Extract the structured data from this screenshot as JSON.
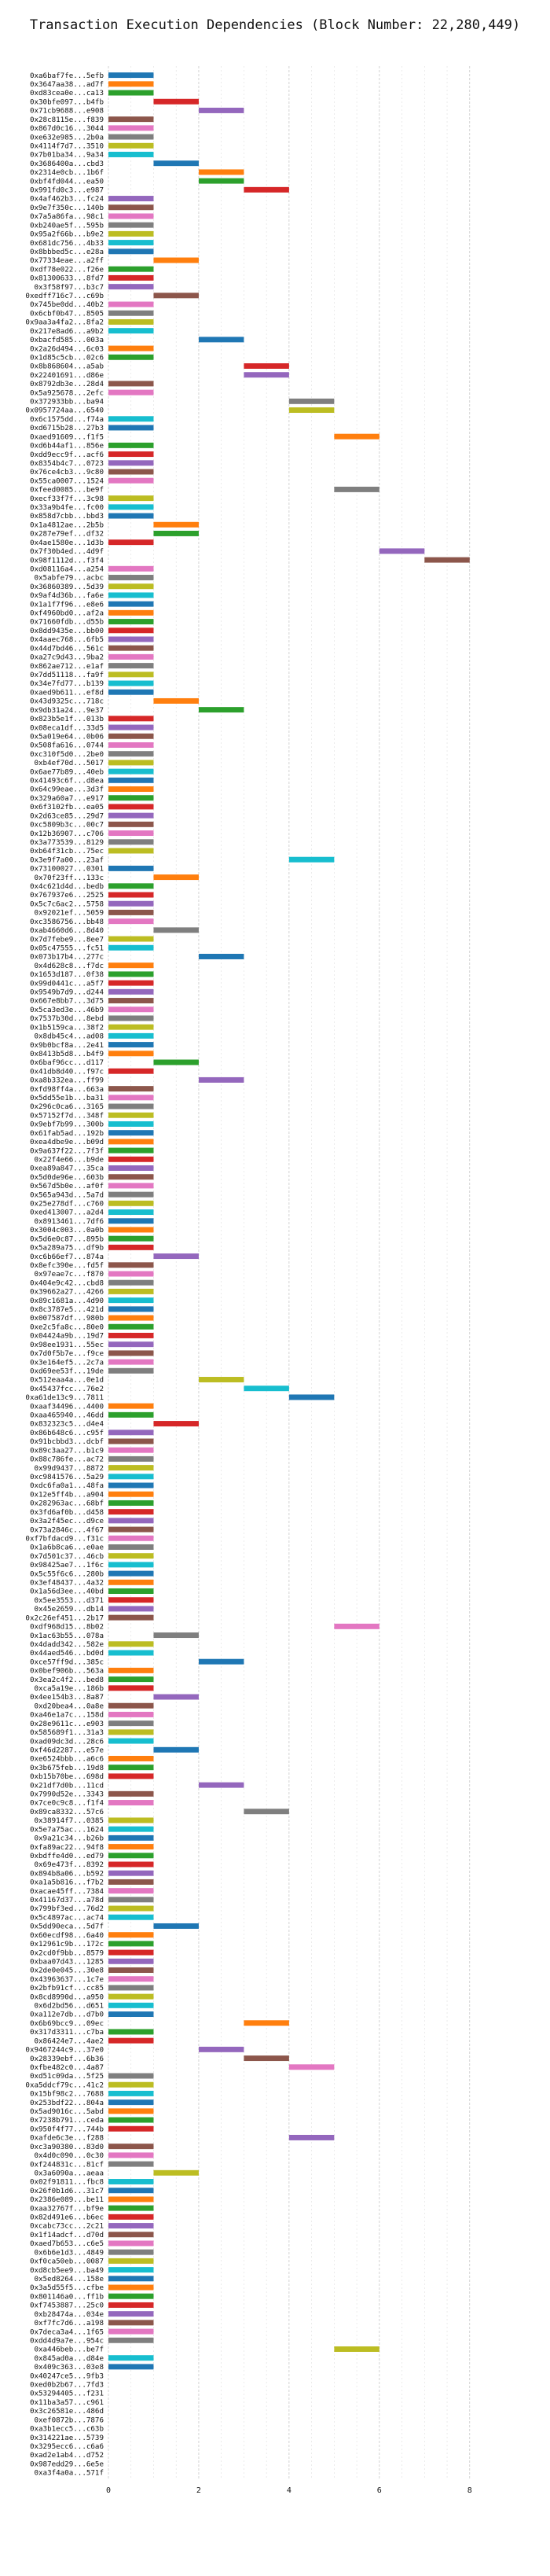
{
  "chart_data": {
    "type": "bar",
    "orientation": "horizontal",
    "title": "Transaction Execution Dependencies (Block Number: 22,280,449)",
    "xlabel": "",
    "ylabel": "",
    "xlim": [
      0,
      8.3
    ],
    "xticks": [
      0,
      2,
      4,
      6,
      8
    ],
    "x_minor_gridlines": true,
    "grid": true,
    "categories": [
      "0xa6baf7fe...5efb",
      "0x3647aa38...ad7f",
      "0xd83cea0e...ca13",
      "0x30bfe097...b4fb",
      "0x71cb9688...e908",
      "0x28c8115e...f839",
      "0x867d0c16...3044",
      "0xe632e985...2b0a",
      "0x4114f7d7...3510",
      "0x7b01ba34...9a34",
      "0x3686400a...cbd3",
      "0x2314e0cb...1b6f",
      "0xbf4fd044...ea50",
      "0x991fd0c3...e987",
      "0x4af462b3...fc24",
      "0x9e7f350c...140b",
      "0x7a5a86fa...98c1",
      "0xb240ae5f...595b",
      "0x95a2f66b...b9e2",
      "0x681dc756...4b33",
      "0x8bbbed5c...e28a",
      "0x77334eae...a2ff",
      "0xdf78e022...f26e",
      "0x81300633...8fd7",
      "0x3f58f97...b3c7",
      "0xedff716c7...c69b",
      "0x745be0dd...40b2",
      "0x6cbf0b47...8505",
      "0x9aa3a4fa2...8fa2",
      "0x217e8ad6...a9b2",
      "0xbacfd585...003a",
      "0x2a26d494...6c03",
      "0x1d85c5cb...02c6",
      "0x8b868604...a5ab",
      "0x22401691...d86e",
      "0x8792db3e...28d4",
      "0x5a925678...2efc",
      "0x372933bb...ba94",
      "0x0957724aa...6540",
      "0x6c1575dd...f74a",
      "0xd6715b28...27b3",
      "0xaed91609...f1f5",
      "0xd6b44af1...856e",
      "0xdd9ecc9f...acf6",
      "0x8354b4c7...0723",
      "0x76ce4cb3...9c80",
      "0x55ca0007...1524",
      "0xfeed0085...be9f",
      "0xecf33f7f...3c98",
      "0x33a9b4fe...fc00",
      "0x858d7cbb...bbd3",
      "0x1a4812ae...2b5b",
      "0x287e79ef...df32",
      "0x4ae1580e...1d3b",
      "0x7f30b4ed...4d9f",
      "0x98f1112d...f3f4",
      "0xd08116a4...a254",
      "0x5abfe79...acbc",
      "0x36860389...5d39",
      "0x9af4d36b...fa6e",
      "0x1a1f7f96...e8e6",
      "0xf4960bd0...af2a",
      "0x71660fdb...d55b",
      "0x8dd9435e...bb00",
      "0x4aaec768...6fb5",
      "0x44d7bd46...561c",
      "0xa27c9d43...9ba2",
      "0x862ae712...e1af",
      "0x7dd51118...fa9f",
      "0x34e7fd77...b139",
      "0xaed9b611...ef8d",
      "0x43d9325c...718c",
      "0x9db31a24...9e37",
      "0x823b5e1f...013b",
      "0x08eca1df...33d5",
      "0x5a019e64...0b06",
      "0x508fa616...0744",
      "0xc310f5d0...2be0",
      "0xb4ef70d...5017",
      "0x6ae77b89...40eb",
      "0x41493c6f...d8ea",
      "0x64c99eae...3d3f",
      "0x329a60a7...e917",
      "0x6f3102fb...ea05",
      "0x2d63ce85...29d7",
      "0xc5809b3c...00c7",
      "0x12b36907...c706",
      "0x3a773539...8129",
      "0xb64f31cb...75ec",
      "0x3e9f7a00...23af",
      "0x73100027...0301",
      "0x70f23ff...133c",
      "0x4c621d4d...bedb",
      "0x767937e6...2525",
      "0x5c7c6ac2...5758",
      "0x92021ef...5059",
      "0xc3586756...bb48",
      "0xab4660d6...8d40",
      "0x7d7febe9...8ee7",
      "0x05c47555...fc51",
      "0x073b17b4...277c",
      "0x4d628c8...f7dc",
      "0x1653d187...0f38",
      "0x99d0441c...a5f7",
      "0x9549b7d9...d244",
      "0x667e8bb7...3d75",
      "0x5ca3ed3e...46b9",
      "0x7537b30d...8ebd",
      "0x1b5159ca...38f2",
      "0x8db45c4...ad08",
      "0x9b0bcf8a...2e41",
      "0x8413b5d8...b4f9",
      "0x6baf96cc...d117",
      "0x41db8d40...f97c",
      "0xa8b332ea...ff99",
      "0xfd98ff4a...663a",
      "0x5dd55e1b...ba31",
      "0x296c0ca6...3165",
      "0x57152f7d...348f",
      "0x9ebf7b99...300b",
      "0x61fab5ad...192b",
      "0xea4dbe9e...b09d",
      "0x9a637f22...7f3f",
      "0x22f4e66...b9de",
      "0xea89a847...35ca",
      "0x5d0de96e...603b",
      "0x567d5b0e...af0f",
      "0x565a943d...5a7d",
      "0x25e278df...c760",
      "0xed413007...a2d4",
      "0x8913461...7df6",
      "0x3004c003...0a0b",
      "0x5d6e0c87...895b",
      "0x5a289a75...df9b",
      "0xc6b66ef7...874a",
      "0x8efc390e...fd5f",
      "0x97eae7c...f870",
      "0x404e9c42...cbd8",
      "0x39662a27...4266",
      "0x89c1681a...4d90",
      "0x8c3787e5...421d",
      "0x007587df...980b",
      "0xe2c5fa8c...80e0",
      "0x04424a9b...19d7",
      "0x98ee1931...55ec",
      "0x7d0f5b7e...f9ce",
      "0x3e164ef5...2c7a",
      "0xd69ee53f...19de",
      "0x512eaa4a...0e1d",
      "0x45437fcc...76e2",
      "0xa61de13c9...7811",
      "0xaaf34496...4400",
      "0xaa465940...46dd",
      "0x832323c5...d4e4",
      "0x86b648c6...c95f",
      "0x91bcbbd3...dcbf",
      "0x89c3aa27...b1c9",
      "0x88c786fe...ac72",
      "0x99d9437...8872",
      "0xc9841576...5a29",
      "0xdc6fa0a1...48fa",
      "0x12e5ff4b...a904",
      "0x282963ac...68bf",
      "0x3fd6af0b...d458",
      "0x3a2f45ec...d9ce",
      "0x73a2846c...4f67",
      "0xf7bfdacd9...f31c",
      "0x1a6b8ca6...e0ae",
      "0x7d501c37...46cb",
      "0x98425ae7...1f6c",
      "0x5c55f6c6...280b",
      "0x3ef48437...4a32",
      "0x1a56d3ee...40bd",
      "0x5ee3553...d371",
      "0x45e2659...db14",
      "0x2c26ef451...2b17",
      "0xdf968d15...8b02",
      "0x1ac63b55...078a",
      "0x4dadd342...582e",
      "0x44aed546...bd0d",
      "0xce57ff9d...385c",
      "0x0bef906b...563a",
      "0x3ea2c4f2...bed8",
      "0xca5a19e...186b",
      "0x4ee154b3...8a87",
      "0xd20bea4...0a8e",
      "0xa46e1a7c...158d",
      "0x28e9611c...e903",
      "0x585689f1...31a3",
      "0xad09dc3d...28c6",
      "0xf46d2287...e57e",
      "0xe6524bbb...a6c6",
      "0x3b675feb...19d8",
      "0xb15b70be...698d",
      "0x21df7d0b...11cd",
      "0x7990d52e...3343",
      "0x7ce0c9c8...f1f4",
      "0x89ca8332...57c6",
      "0x38914f7...0385",
      "0x5e7a75ac...1624",
      "0x9a21c34...b26b",
      "0xfa89ac22...94f8",
      "0xbdffe4d0...ed79",
      "0x69e473f...8392",
      "0x894b8a06...b592",
      "0xa1a5b816...f7b2",
      "0xacae45ff...7384",
      "0x41167d37...a78d",
      "0x799bf3ed...76d2",
      "0x5c4897ac...ac74",
      "0x5dd90eca...5d7f",
      "0x60ecdf98...6a40",
      "0x12961c9b...172c",
      "0x2cd0f9bb...8579",
      "0xbaa07d43...1285",
      "0x2de0e045...30e8",
      "0x43963637...1c7e",
      "0x2bfb91cf...cc85",
      "0x8cd8990d...a950",
      "0x6d2bd56...d651",
      "0xa112e7db...d7b0",
      "0x6b69bcc9...09ec",
      "0x317d3311...c7ba",
      "0x86424e7...4ae2",
      "0x9467244c9...37e0",
      "0x28339ebf...6b36",
      "0xfbe482c0...4a87",
      "0xd51c09da...5f25",
      "0xa5ddcf79c...41c2",
      "0x15bf98c2...7688",
      "0x253bdf22...804a",
      "0x5ad9016c...5abd",
      "0x7238b791...ceda",
      "0x950f4f77...744b",
      "0xafde6c3e...f288",
      "0xc3a90380...83d0",
      "0x4d0c090...0c30",
      "0xf244831c...81cf",
      "0x3a6090a...aeaa",
      "0x02f91811...fbc8",
      "0x26f0b1d6...31c7",
      "0x2386e089...be11",
      "0xaa32767f...bf9e",
      "0x82d491e6...b6ec",
      "0xcabc73cc...2c21",
      "0x1f14adcf...d70d",
      "0xaed7b653...c6e5",
      "0x6b6e1d3...4849",
      "0xf0ca50eb...0087",
      "0xd8cb5ee9...ba49",
      "0x5ed8264...158e",
      "0x3a5d55f5...cfbe",
      "0x801146a0...ff1b",
      "0xf7453887...25c0",
      "0xb28474a...034e",
      "0xf7fc7d6...a198",
      "0x7deca3a4...1f65",
      "0xdd4d9a7e...954c",
      "0xa446beb...be7f",
      "0x845ad0a...d84e",
      "0x409c363...03e8",
      "0x40247ce5...9fb3",
      "0xed0b2b67...7fd3",
      "0x53294405...f231",
      "0x11ba3a57...c961",
      "0x3c26581e...486d",
      "0xef0872b...7876",
      "0xa3b1ecc5...c63b",
      "0x314221ae...5739",
      "0x3295ecc6...c6a6",
      "0xad2e1ab4...d752",
      "0x987edd29...6e5e",
      "0xa3f4a0a...571f"
    ],
    "start_values": [
      0,
      0,
      0,
      1,
      2,
      0,
      0,
      0,
      0,
      0,
      1,
      2,
      2,
      3,
      0,
      0,
      0,
      0,
      0,
      0,
      0,
      1,
      0,
      0,
      0,
      1,
      0,
      0,
      0,
      0,
      2,
      0,
      0,
      3,
      3,
      0,
      0,
      4,
      4,
      0,
      0,
      5,
      0,
      0,
      0,
      0,
      0,
      5,
      0,
      0,
      0,
      1,
      1,
      0,
      6,
      7,
      0,
      0,
      0,
      0,
      0,
      0,
      0,
      0,
      0,
      0,
      0,
      0,
      0,
      0,
      0,
      1,
      2,
      0,
      0,
      0,
      0,
      0,
      0,
      0,
      0,
      0,
      0,
      0,
      0,
      0,
      0,
      0,
      0,
      4,
      0,
      1,
      0,
      0,
      0,
      0,
      0,
      1,
      0,
      0,
      2,
      0,
      0,
      0,
      0,
      0,
      0,
      0,
      0,
      0,
      0,
      0,
      1,
      0,
      2,
      0,
      0,
      0,
      0,
      0,
      0,
      0,
      0,
      0,
      0,
      0,
      0,
      0,
      0,
      0,
      0,
      0,
      0,
      0,
      1,
      0,
      0,
      0,
      0,
      0,
      0,
      0,
      0,
      0,
      0,
      0,
      0,
      0,
      2,
      3,
      4,
      0,
      0,
      1,
      0,
      0,
      0,
      0,
      0,
      0,
      0,
      0,
      0,
      0,
      0,
      0,
      0,
      0,
      0,
      0,
      0,
      0,
      0,
      0,
      0,
      0,
      5,
      1,
      0,
      0,
      2,
      0,
      0,
      0,
      1,
      0,
      0,
      0,
      0,
      0,
      1,
      0,
      0,
      0,
      2,
      0,
      0,
      3,
      0,
      0,
      0,
      0,
      0,
      0,
      0,
      0,
      0,
      0,
      0,
      0,
      1,
      0,
      0,
      0,
      0,
      0,
      0,
      0,
      0,
      0,
      0,
      3,
      0,
      0,
      2,
      3,
      4,
      0,
      0,
      0,
      0,
      0,
      0,
      0,
      4,
      0,
      0,
      0,
      1,
      0,
      0,
      0,
      0,
      0,
      0,
      0,
      0,
      0,
      0,
      0,
      0,
      0,
      0,
      0,
      0,
      0,
      0,
      0,
      5,
      0,
      0
    ],
    "end_values": [
      1,
      1,
      1,
      2,
      3,
      1,
      1,
      1,
      1,
      1,
      2,
      3,
      3,
      4,
      1,
      1,
      1,
      1,
      1,
      1,
      1,
      2,
      1,
      1,
      1,
      2,
      1,
      1,
      1,
      1,
      3,
      1,
      1,
      4,
      4,
      1,
      1,
      5,
      5,
      1,
      1,
      6,
      1,
      1,
      1,
      1,
      1,
      6,
      1,
      1,
      1,
      2,
      2,
      1,
      7,
      8,
      1,
      1,
      1,
      1,
      1,
      1,
      1,
      1,
      1,
      1,
      1,
      1,
      1,
      1,
      1,
      2,
      3,
      1,
      1,
      1,
      1,
      1,
      1,
      1,
      1,
      1,
      1,
      1,
      1,
      1,
      1,
      1,
      1,
      5,
      1,
      2,
      1,
      1,
      1,
      1,
      1,
      2,
      1,
      1,
      3,
      1,
      1,
      1,
      1,
      1,
      1,
      1,
      1,
      1,
      1,
      1,
      2,
      1,
      3,
      1,
      1,
      1,
      1,
      1,
      1,
      1,
      1,
      1,
      1,
      1,
      1,
      1,
      1,
      1,
      1,
      1,
      1,
      1,
      2,
      1,
      1,
      1,
      1,
      1,
      1,
      1,
      1,
      1,
      1,
      1,
      1,
      1,
      3,
      4,
      5,
      1,
      1,
      2,
      1,
      1,
      1,
      1,
      1,
      1,
      1,
      1,
      1,
      1,
      1,
      1,
      1,
      1,
      1,
      1,
      1,
      1,
      1,
      1,
      1,
      1,
      6,
      2,
      1,
      1,
      3,
      1,
      1,
      1,
      2,
      1,
      1,
      1,
      1,
      1,
      2,
      1,
      1,
      1,
      3,
      1,
      1,
      4,
      1,
      1,
      1,
      1,
      1,
      1,
      1,
      1,
      1,
      1,
      1,
      1,
      2,
      1,
      1,
      1,
      1,
      1,
      1,
      1,
      1,
      1,
      1,
      4,
      1,
      1,
      3,
      4,
      5,
      1,
      1,
      1,
      1,
      1,
      1,
      1,
      5,
      1,
      1,
      1,
      2,
      1,
      1,
      1,
      1,
      1,
      1,
      1,
      1,
      1,
      1,
      1,
      1,
      1,
      1,
      1,
      1,
      1,
      1,
      1,
      6,
      1,
      1
    ],
    "palette": [
      "#1f77b4",
      "#ff7f0e",
      "#2ca02c",
      "#d62728",
      "#9467bd",
      "#8c564b",
      "#e377c2",
      "#7f7f7f",
      "#bcbd22",
      "#17becf"
    ]
  }
}
